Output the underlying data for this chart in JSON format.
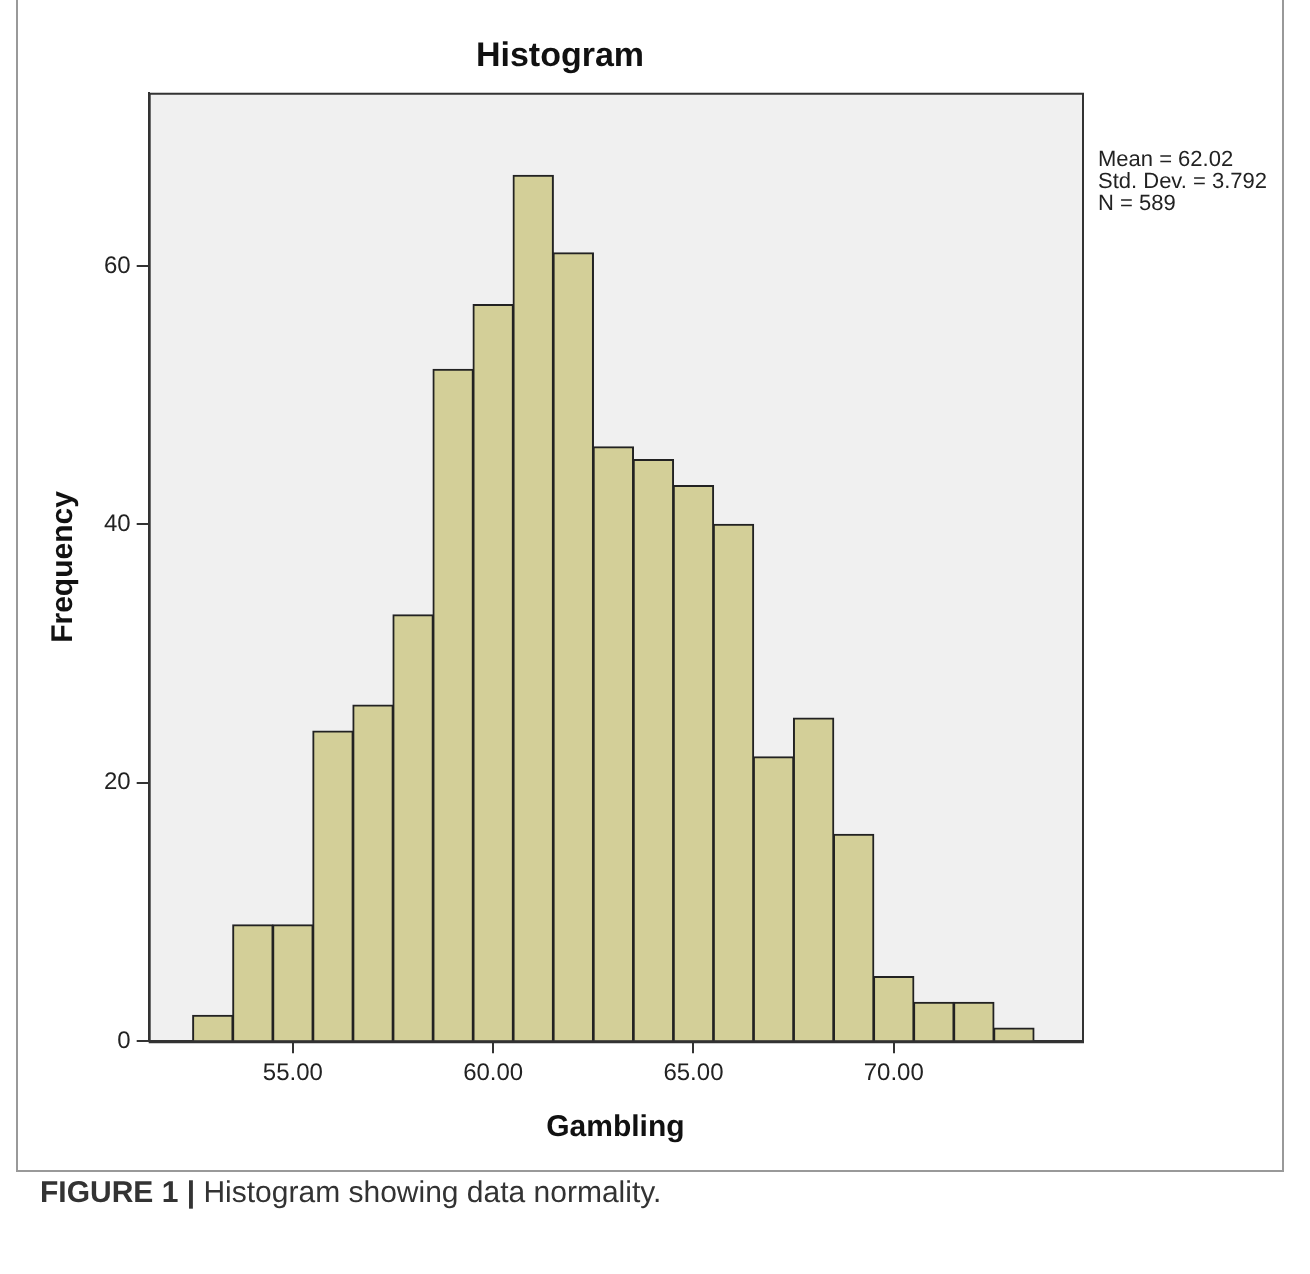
{
  "chart_data": {
    "type": "histogram",
    "title": "Histogram",
    "xlabel": "Gambling",
    "ylabel": "Frequency",
    "bins": [
      52.5,
      53.5,
      54.5,
      55.5,
      56.5,
      57.5,
      58.5,
      59.5,
      60.5,
      61.5,
      62.5,
      63.5,
      64.5,
      65.5,
      66.5,
      67.5,
      68.5,
      69.5,
      70.5,
      71.5,
      72.5,
      73.5
    ],
    "values": [
      2,
      9,
      9,
      24,
      26,
      33,
      52,
      57,
      67,
      61,
      46,
      45,
      43,
      40,
      22,
      25,
      16,
      5,
      3,
      3,
      1
    ],
    "color": "#d3cf98",
    "xlim": [
      51.4,
      74.7
    ],
    "xticks": [
      {
        "value": 55,
        "label": "55.00"
      },
      {
        "value": 60,
        "label": "60.00"
      },
      {
        "value": 65,
        "label": "65.00"
      },
      {
        "value": 70,
        "label": "70.00"
      }
    ],
    "ylim": [
      0,
      73.4
    ],
    "yticks": [
      0,
      20,
      40,
      60
    ],
    "grid": false,
    "legend": false,
    "annotations": [
      "Mean = 62.02",
      "Std. Dev. = 3.792",
      "N = 589",
      "FIGURE 1 | Histogram showing data normality."
    ]
  }
}
